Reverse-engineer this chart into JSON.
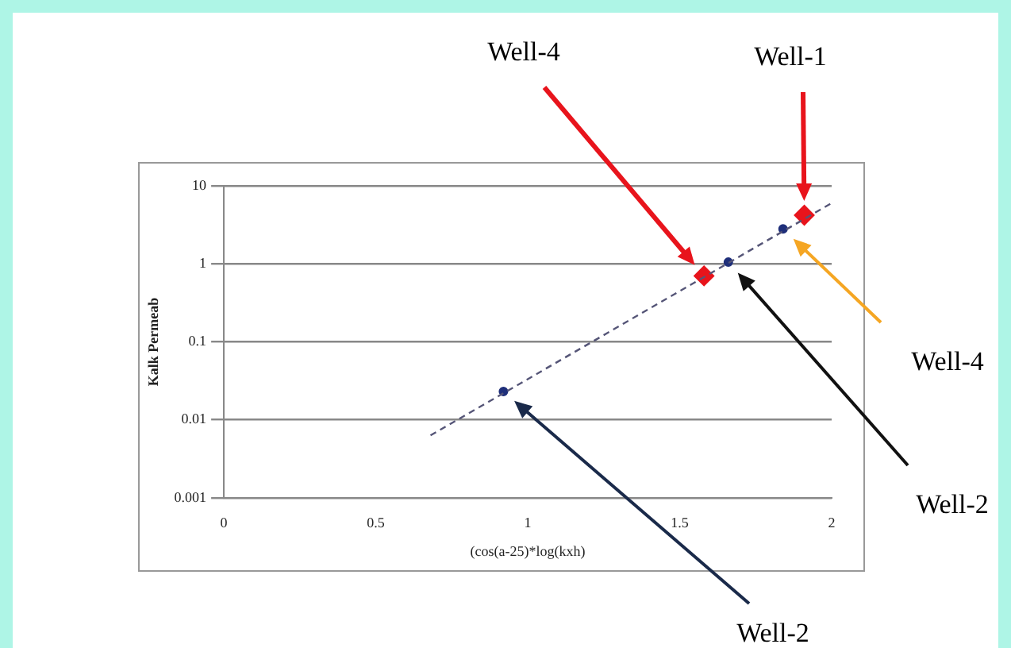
{
  "chart_data": {
    "type": "scatter",
    "xlabel": "(cos(a-25)*log(kxh)",
    "ylabel": "Kalk Permeab",
    "log": "y",
    "xlim": [
      0,
      2
    ],
    "xticks": [
      0,
      0.5,
      1,
      1.5,
      2
    ],
    "ylim": [
      0.001,
      10
    ],
    "yticks": [
      0.001,
      0.01,
      0.1,
      1,
      10
    ],
    "grid": "y",
    "legend": false,
    "series": [
      {
        "type": "line",
        "color": "#555577",
        "line_style": "dashed",
        "marker": "none",
        "x": [
          0.68,
          2.0
        ],
        "values": [
          0.0063,
          6.0
        ]
      },
      {
        "color": "#1f2f7a",
        "marker": "circle",
        "x": [
          0.92,
          1.66,
          1.84
        ],
        "values": [
          0.023,
          1.05,
          2.8
        ]
      },
      {
        "color": "#e8141c",
        "marker": "diamond",
        "x": [
          1.58,
          1.91
        ],
        "values": [
          0.7,
          4.2
        ]
      }
    ],
    "annotations": [
      "Well-4",
      "Well-1",
      "Well-4",
      "Well-2",
      "Well-2"
    ]
  }
}
